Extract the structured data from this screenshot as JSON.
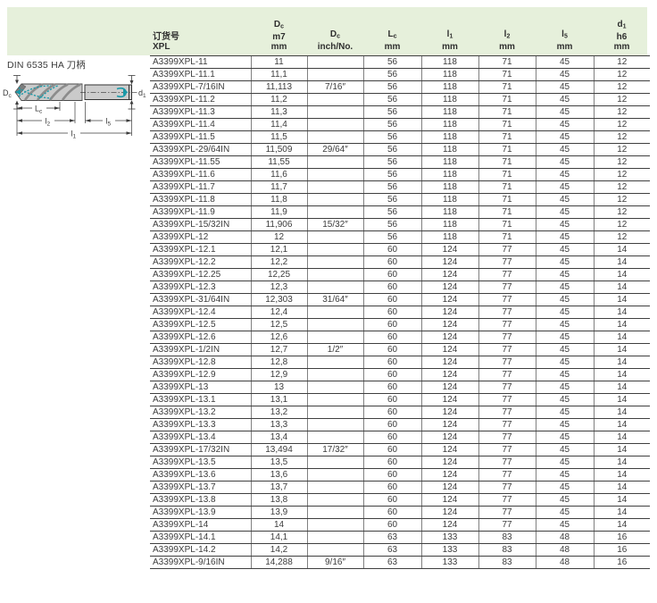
{
  "page": {
    "diagram_title": "DIN 6535 HA 刀柄"
  },
  "diagram": {
    "labels": {
      "dc": {
        "main": "D",
        "sub": "c"
      },
      "d1": {
        "main": "d",
        "sub": "1"
      },
      "lc": {
        "main": "L",
        "sub": "c"
      },
      "l2": {
        "main": "l",
        "sub": "2"
      },
      "l5": {
        "main": "l",
        "sub": "5"
      },
      "l1": {
        "main": "l",
        "sub": "1"
      }
    },
    "colors": {
      "body": "#cacaca",
      "flute": "#8c8c8c",
      "coolant": "#1899a8",
      "line": "#3c3c3c"
    }
  },
  "table": {
    "header_bg": "#e6f0db",
    "columns": [
      {
        "id": "order-no",
        "lines": [
          "订货号",
          "XPL"
        ]
      },
      {
        "id": "dc-mm",
        "lines": [
          "D_c",
          "m7",
          "mm"
        ]
      },
      {
        "id": "dc-inch",
        "lines": [
          "D_c",
          "inch/No."
        ]
      },
      {
        "id": "lc",
        "lines": [
          "L_c",
          "mm"
        ]
      },
      {
        "id": "l1",
        "lines": [
          "l_1",
          "mm"
        ]
      },
      {
        "id": "l2",
        "lines": [
          "l_2",
          "mm"
        ]
      },
      {
        "id": "l5",
        "lines": [
          "l_5",
          "mm"
        ]
      },
      {
        "id": "d1",
        "lines": [
          "d_1",
          "h6",
          "mm"
        ]
      }
    ],
    "rows": [
      [
        "A3399XPL-11",
        "11",
        "",
        "56",
        "118",
        "71",
        "45",
        "12"
      ],
      [
        "A3399XPL-11.1",
        "11,1",
        "",
        "56",
        "118",
        "71",
        "45",
        "12"
      ],
      [
        "A3399XPL-7/16IN",
        "11,113",
        "7/16″",
        "56",
        "118",
        "71",
        "45",
        "12"
      ],
      [
        "A3399XPL-11.2",
        "11,2",
        "",
        "56",
        "118",
        "71",
        "45",
        "12"
      ],
      [
        "A3399XPL-11.3",
        "11,3",
        "",
        "56",
        "118",
        "71",
        "45",
        "12"
      ],
      [
        "A3399XPL-11.4",
        "11,4",
        "",
        "56",
        "118",
        "71",
        "45",
        "12"
      ],
      [
        "A3399XPL-11.5",
        "11,5",
        "",
        "56",
        "118",
        "71",
        "45",
        "12"
      ],
      [
        "A3399XPL-29/64IN",
        "11,509",
        "29/64″",
        "56",
        "118",
        "71",
        "45",
        "12"
      ],
      [
        "A3399XPL-11.55",
        "11,55",
        "",
        "56",
        "118",
        "71",
        "45",
        "12"
      ],
      [
        "A3399XPL-11.6",
        "11,6",
        "",
        "56",
        "118",
        "71",
        "45",
        "12"
      ],
      [
        "A3399XPL-11.7",
        "11,7",
        "",
        "56",
        "118",
        "71",
        "45",
        "12"
      ],
      [
        "A3399XPL-11.8",
        "11,8",
        "",
        "56",
        "118",
        "71",
        "45",
        "12"
      ],
      [
        "A3399XPL-11.9",
        "11,9",
        "",
        "56",
        "118",
        "71",
        "45",
        "12"
      ],
      [
        "A3399XPL-15/32IN",
        "11,906",
        "15/32″",
        "56",
        "118",
        "71",
        "45",
        "12"
      ],
      [
        "A3399XPL-12",
        "12",
        "",
        "56",
        "118",
        "71",
        "45",
        "12"
      ],
      [
        "A3399XPL-12.1",
        "12,1",
        "",
        "60",
        "124",
        "77",
        "45",
        "14"
      ],
      [
        "A3399XPL-12.2",
        "12,2",
        "",
        "60",
        "124",
        "77",
        "45",
        "14"
      ],
      [
        "A3399XPL-12.25",
        "12,25",
        "",
        "60",
        "124",
        "77",
        "45",
        "14"
      ],
      [
        "A3399XPL-12.3",
        "12,3",
        "",
        "60",
        "124",
        "77",
        "45",
        "14"
      ],
      [
        "A3399XPL-31/64IN",
        "12,303",
        "31/64″",
        "60",
        "124",
        "77",
        "45",
        "14"
      ],
      [
        "A3399XPL-12.4",
        "12,4",
        "",
        "60",
        "124",
        "77",
        "45",
        "14"
      ],
      [
        "A3399XPL-12.5",
        "12,5",
        "",
        "60",
        "124",
        "77",
        "45",
        "14"
      ],
      [
        "A3399XPL-12.6",
        "12,6",
        "",
        "60",
        "124",
        "77",
        "45",
        "14"
      ],
      [
        "A3399XPL-1/2IN",
        "12,7",
        "1/2″",
        "60",
        "124",
        "77",
        "45",
        "14"
      ],
      [
        "A3399XPL-12.8",
        "12,8",
        "",
        "60",
        "124",
        "77",
        "45",
        "14"
      ],
      [
        "A3399XPL-12.9",
        "12,9",
        "",
        "60",
        "124",
        "77",
        "45",
        "14"
      ],
      [
        "A3399XPL-13",
        "13",
        "",
        "60",
        "124",
        "77",
        "45",
        "14"
      ],
      [
        "A3399XPL-13.1",
        "13,1",
        "",
        "60",
        "124",
        "77",
        "45",
        "14"
      ],
      [
        "A3399XPL-13.2",
        "13,2",
        "",
        "60",
        "124",
        "77",
        "45",
        "14"
      ],
      [
        "A3399XPL-13.3",
        "13,3",
        "",
        "60",
        "124",
        "77",
        "45",
        "14"
      ],
      [
        "A3399XPL-13.4",
        "13,4",
        "",
        "60",
        "124",
        "77",
        "45",
        "14"
      ],
      [
        "A3399XPL-17/32IN",
        "13,494",
        "17/32″",
        "60",
        "124",
        "77",
        "45",
        "14"
      ],
      [
        "A3399XPL-13.5",
        "13,5",
        "",
        "60",
        "124",
        "77",
        "45",
        "14"
      ],
      [
        "A3399XPL-13.6",
        "13,6",
        "",
        "60",
        "124",
        "77",
        "45",
        "14"
      ],
      [
        "A3399XPL-13.7",
        "13,7",
        "",
        "60",
        "124",
        "77",
        "45",
        "14"
      ],
      [
        "A3399XPL-13.8",
        "13,8",
        "",
        "60",
        "124",
        "77",
        "45",
        "14"
      ],
      [
        "A3399XPL-13.9",
        "13,9",
        "",
        "60",
        "124",
        "77",
        "45",
        "14"
      ],
      [
        "A3399XPL-14",
        "14",
        "",
        "60",
        "124",
        "77",
        "45",
        "14"
      ],
      [
        "A3399XPL-14.1",
        "14,1",
        "",
        "63",
        "133",
        "83",
        "48",
        "16"
      ],
      [
        "A3399XPL-14.2",
        "14,2",
        "",
        "63",
        "133",
        "83",
        "48",
        "16"
      ],
      [
        "A3399XPL-9/16IN",
        "14,288",
        "9/16″",
        "63",
        "133",
        "83",
        "48",
        "16"
      ]
    ]
  }
}
